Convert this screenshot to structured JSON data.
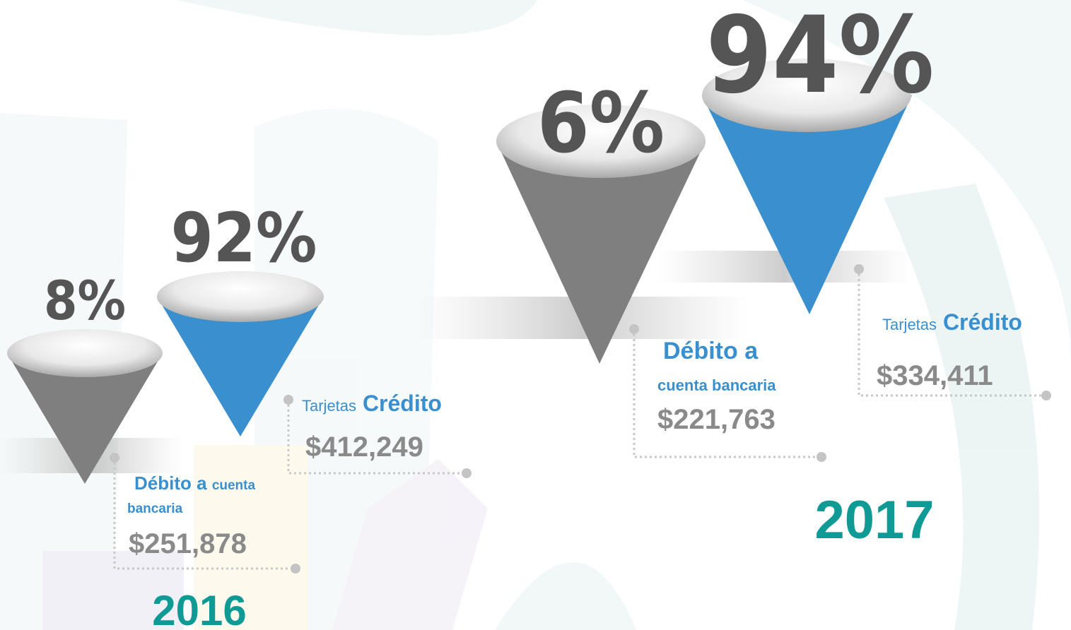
{
  "groups": [
    {
      "year": "2016",
      "items": [
        {
          "percent": "8%",
          "label": [
            "Débito a",
            "cuenta",
            "bancaria"
          ],
          "amount": "$251,878"
        },
        {
          "percent": "92%",
          "label": [
            "Tarjetas",
            "Crédito"
          ],
          "amount": "$412,249"
        }
      ]
    },
    {
      "year": "2017",
      "items": [
        {
          "percent": "6%",
          "label": [
            "Débito a",
            "cuenta bancaria"
          ],
          "amount": "$221,763"
        },
        {
          "percent": "94%",
          "label": [
            "Tarjetas",
            "Crédito"
          ],
          "amount": "$334,411"
        }
      ]
    }
  ]
}
